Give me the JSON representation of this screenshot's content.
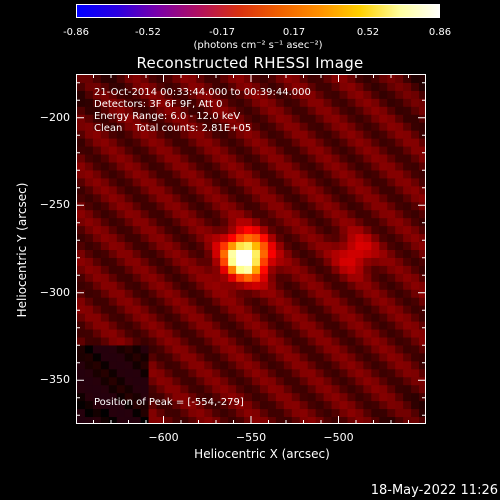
{
  "colorbar": {
    "ticks": [
      "-0.86",
      "-0.52",
      "-0.17",
      "0.17",
      "0.52",
      "0.86"
    ],
    "tick_values": [
      -0.86,
      -0.52,
      -0.17,
      0.17,
      0.52,
      0.86
    ],
    "unit_label": "(photons cm⁻² s⁻¹ asec⁻²)",
    "colors": [
      "#0000ff",
      "#2a00e0",
      "#7a00a8",
      "#b01060",
      "#d83010",
      "#f06000",
      "#ff9000",
      "#ffd000",
      "#ffffa0",
      "#ffffff"
    ]
  },
  "chart_data": {
    "type": "heatmap",
    "title": "Reconstructed RHESSI Image",
    "xlabel": "Heliocentric X (arcsec)",
    "ylabel": "Heliocentric Y (arcsec)",
    "xlim": [
      -650,
      -450
    ],
    "ylim": [
      -375,
      -175
    ],
    "xticks": [
      -600,
      -550,
      -500
    ],
    "xtick_labels": [
      "−600",
      "−550",
      "−500"
    ],
    "yticks": [
      -200,
      -250,
      -300,
      -350
    ],
    "ytick_labels": [
      "−200",
      "−250",
      "−300",
      "−350"
    ],
    "zlim": [
      -0.86,
      0.86
    ],
    "sources": [
      {
        "x": -554,
        "y": -279,
        "peak": 0.86,
        "sigma": 6
      },
      {
        "x": -491,
        "y": -277,
        "peak": 0.23,
        "sigma": 5
      }
    ],
    "background_level": 0.15,
    "peak_position": [
      -554,
      -279
    ]
  },
  "info": {
    "line1": "21-Oct-2014 00:33:44.000 to 00:39:44.000",
    "line2": "Detectors: 3F 6F 9F, Att 0",
    "line3": "Energy Range: 6.0 - 12.0 keV",
    "line4": "Clean    Total counts: 2.81E+05"
  },
  "peak_text": "Position of Peak = [-554,-279]",
  "timestamp": "18-May-2022 11:26"
}
